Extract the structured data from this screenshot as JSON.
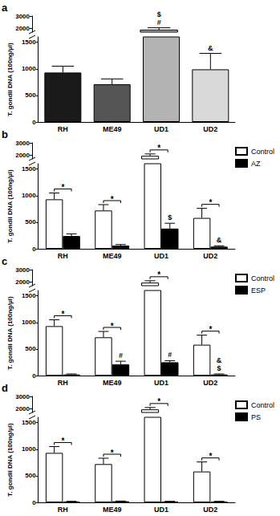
{
  "chart_data": [
    {
      "type": "bar",
      "title": "a",
      "categories": [
        "RH",
        "ME49",
        "UD1",
        "UD2"
      ],
      "values": [
        930,
        710,
        1900,
        990
      ],
      "errors": [
        120,
        100,
        150,
        300
      ],
      "colors": [
        "#1a1a1a",
        "#555555",
        "#b3b3b3",
        "#d9d9d9"
      ],
      "y_label": "T. gondii DNA (100ng/µl)",
      "ylim": [
        0,
        3000
      ],
      "ybreak": [
        1600,
        1700
      ],
      "yticks": [
        0,
        500,
        1000,
        1500,
        2000,
        3000
      ],
      "annotations": [
        {
          "category": "UD1",
          "texts": [
            "$",
            "#"
          ]
        },
        {
          "category": "UD2",
          "texts": [
            "&"
          ]
        }
      ]
    },
    {
      "type": "bar",
      "title": "b",
      "categories": [
        "RH",
        "ME49",
        "UD1",
        "UD2"
      ],
      "y_label": "T. gondii DNA (100ng/µl)",
      "ylim": [
        0,
        3000
      ],
      "ybreak": [
        1600,
        1700
      ],
      "yticks": [
        0,
        500,
        1000,
        1500,
        2000,
        3000
      ],
      "legend": "upper right",
      "series": [
        {
          "name": "Control",
          "color": "#ffffff",
          "values": [
            930,
            720,
            1950,
            580
          ],
          "errors": [
            120,
            110,
            150,
            180
          ]
        },
        {
          "name": "AZ",
          "color": "#000000",
          "values": [
            240,
            60,
            380,
            40
          ],
          "errors": [
            40,
            20,
            100,
            15
          ]
        }
      ],
      "significance": [
        {
          "category": "RH",
          "text": "*"
        },
        {
          "category": "ME49",
          "text": "*"
        },
        {
          "category": "UD1",
          "text": "*"
        },
        {
          "category": "UD2",
          "text": "*"
        }
      ],
      "annotations": [
        {
          "category": "UD1",
          "series": "AZ",
          "texts": [
            "$"
          ]
        },
        {
          "category": "UD2",
          "series": "AZ",
          "texts": [
            "&"
          ]
        }
      ]
    },
    {
      "type": "bar",
      "title": "c",
      "categories": [
        "RH",
        "ME49",
        "UD1",
        "UD2"
      ],
      "y_label": "T. gondii DNA (100ng/µl)",
      "ylim": [
        0,
        3000
      ],
      "ybreak": [
        1600,
        1700
      ],
      "yticks": [
        0,
        500,
        1000,
        1500,
        2000,
        3000
      ],
      "legend": "upper right",
      "series": [
        {
          "name": "Control",
          "color": "#ffffff",
          "values": [
            930,
            720,
            1950,
            580
          ],
          "errors": [
            120,
            110,
            150,
            180
          ]
        },
        {
          "name": "ESP",
          "color": "#000000",
          "values": [
            20,
            210,
            250,
            20
          ],
          "errors": [
            10,
            60,
            30,
            10
          ]
        }
      ],
      "significance": [
        {
          "category": "RH",
          "text": "*"
        },
        {
          "category": "ME49",
          "text": "*"
        },
        {
          "category": "UD1",
          "text": "*"
        },
        {
          "category": "UD2",
          "text": "*"
        }
      ],
      "annotations": [
        {
          "category": "ME49",
          "series": "ESP",
          "texts": [
            "#"
          ]
        },
        {
          "category": "UD1",
          "series": "ESP",
          "texts": [
            "#"
          ]
        },
        {
          "category": "UD2",
          "series": "ESP",
          "texts": [
            "&",
            "$"
          ]
        }
      ]
    },
    {
      "type": "bar",
      "title": "d",
      "categories": [
        "RH",
        "ME49",
        "UD1",
        "UD2"
      ],
      "y_label": "T. gondii DNA (100ng/µl)",
      "ylim": [
        0,
        3000
      ],
      "ybreak": [
        1600,
        1700
      ],
      "yticks": [
        0,
        500,
        1000,
        1500,
        2000,
        3000
      ],
      "legend": "upper right",
      "series": [
        {
          "name": "Control",
          "color": "#ffffff",
          "values": [
            930,
            720,
            1950,
            580
          ],
          "errors": [
            120,
            110,
            150,
            180
          ]
        },
        {
          "name": "PS",
          "color": "#000000",
          "values": [
            15,
            20,
            15,
            15
          ],
          "errors": [
            5,
            5,
            5,
            5
          ]
        }
      ],
      "significance": [
        {
          "category": "RH",
          "text": "*"
        },
        {
          "category": "ME49",
          "text": "*"
        },
        {
          "category": "UD1",
          "text": "*"
        },
        {
          "category": "UD2",
          "text": "*"
        }
      ]
    }
  ]
}
